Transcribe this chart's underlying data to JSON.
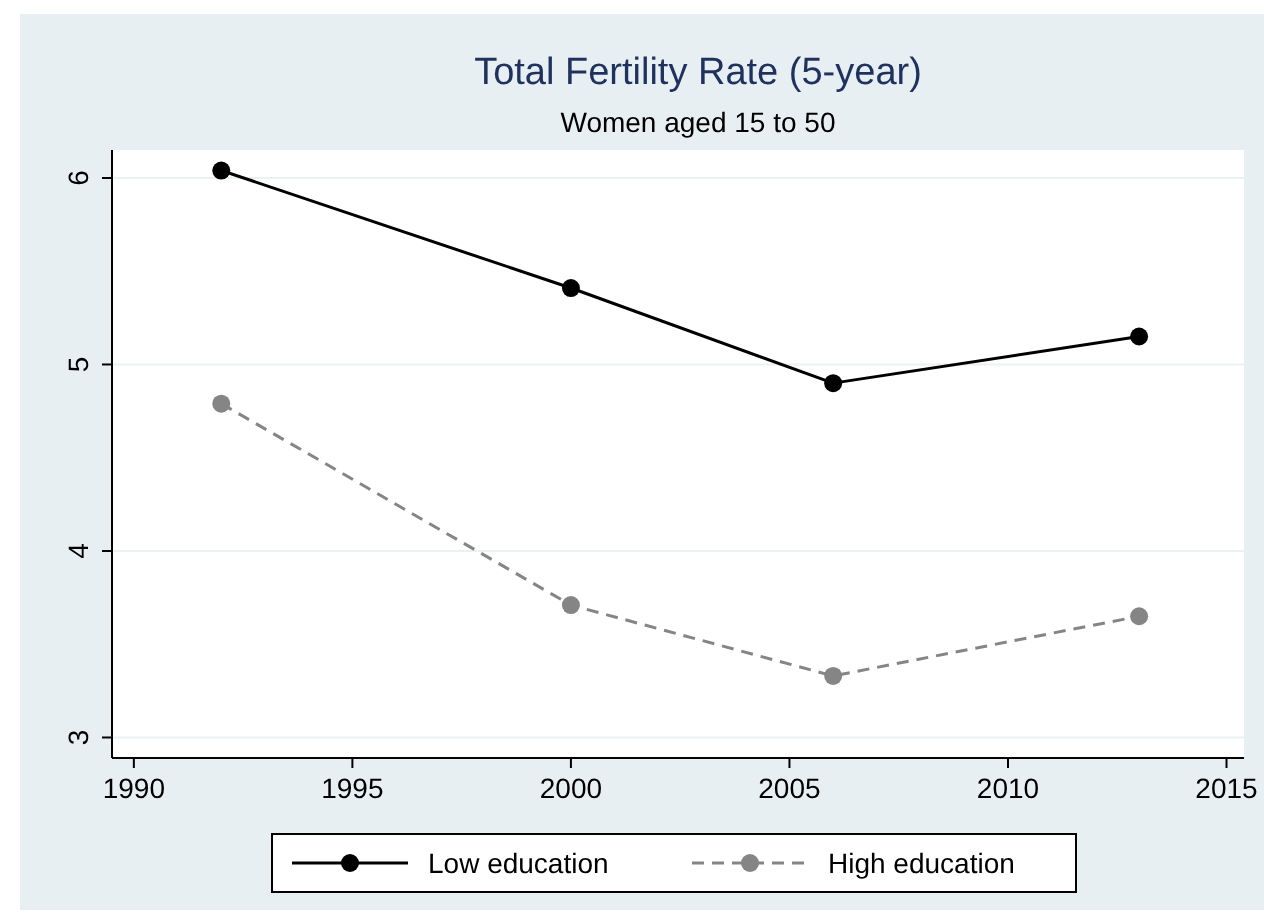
{
  "chart_data": {
    "type": "line",
    "title": "Total Fertility Rate (5-year)",
    "subtitle": "Women aged 15 to 50",
    "x": [
      1992,
      2000,
      2006,
      2013
    ],
    "series": [
      {
        "name": "Low education",
        "color": "#000000",
        "values": [
          6.04,
          5.41,
          4.9,
          5.15
        ],
        "line_style": "solid"
      },
      {
        "name": "High education",
        "color": "#858585",
        "values": [
          4.79,
          3.71,
          3.33,
          3.65
        ],
        "line_style": "dashed"
      }
    ],
    "xlim": [
      1989.5,
      2015.4
    ],
    "xticks": [
      1990,
      1995,
      2000,
      2005,
      2010,
      2015
    ],
    "ylim": [
      2.89,
      6.15
    ],
    "yticks": [
      3,
      4,
      5,
      6
    ],
    "grid": "y",
    "legend": "bottom",
    "marker": "circle"
  }
}
